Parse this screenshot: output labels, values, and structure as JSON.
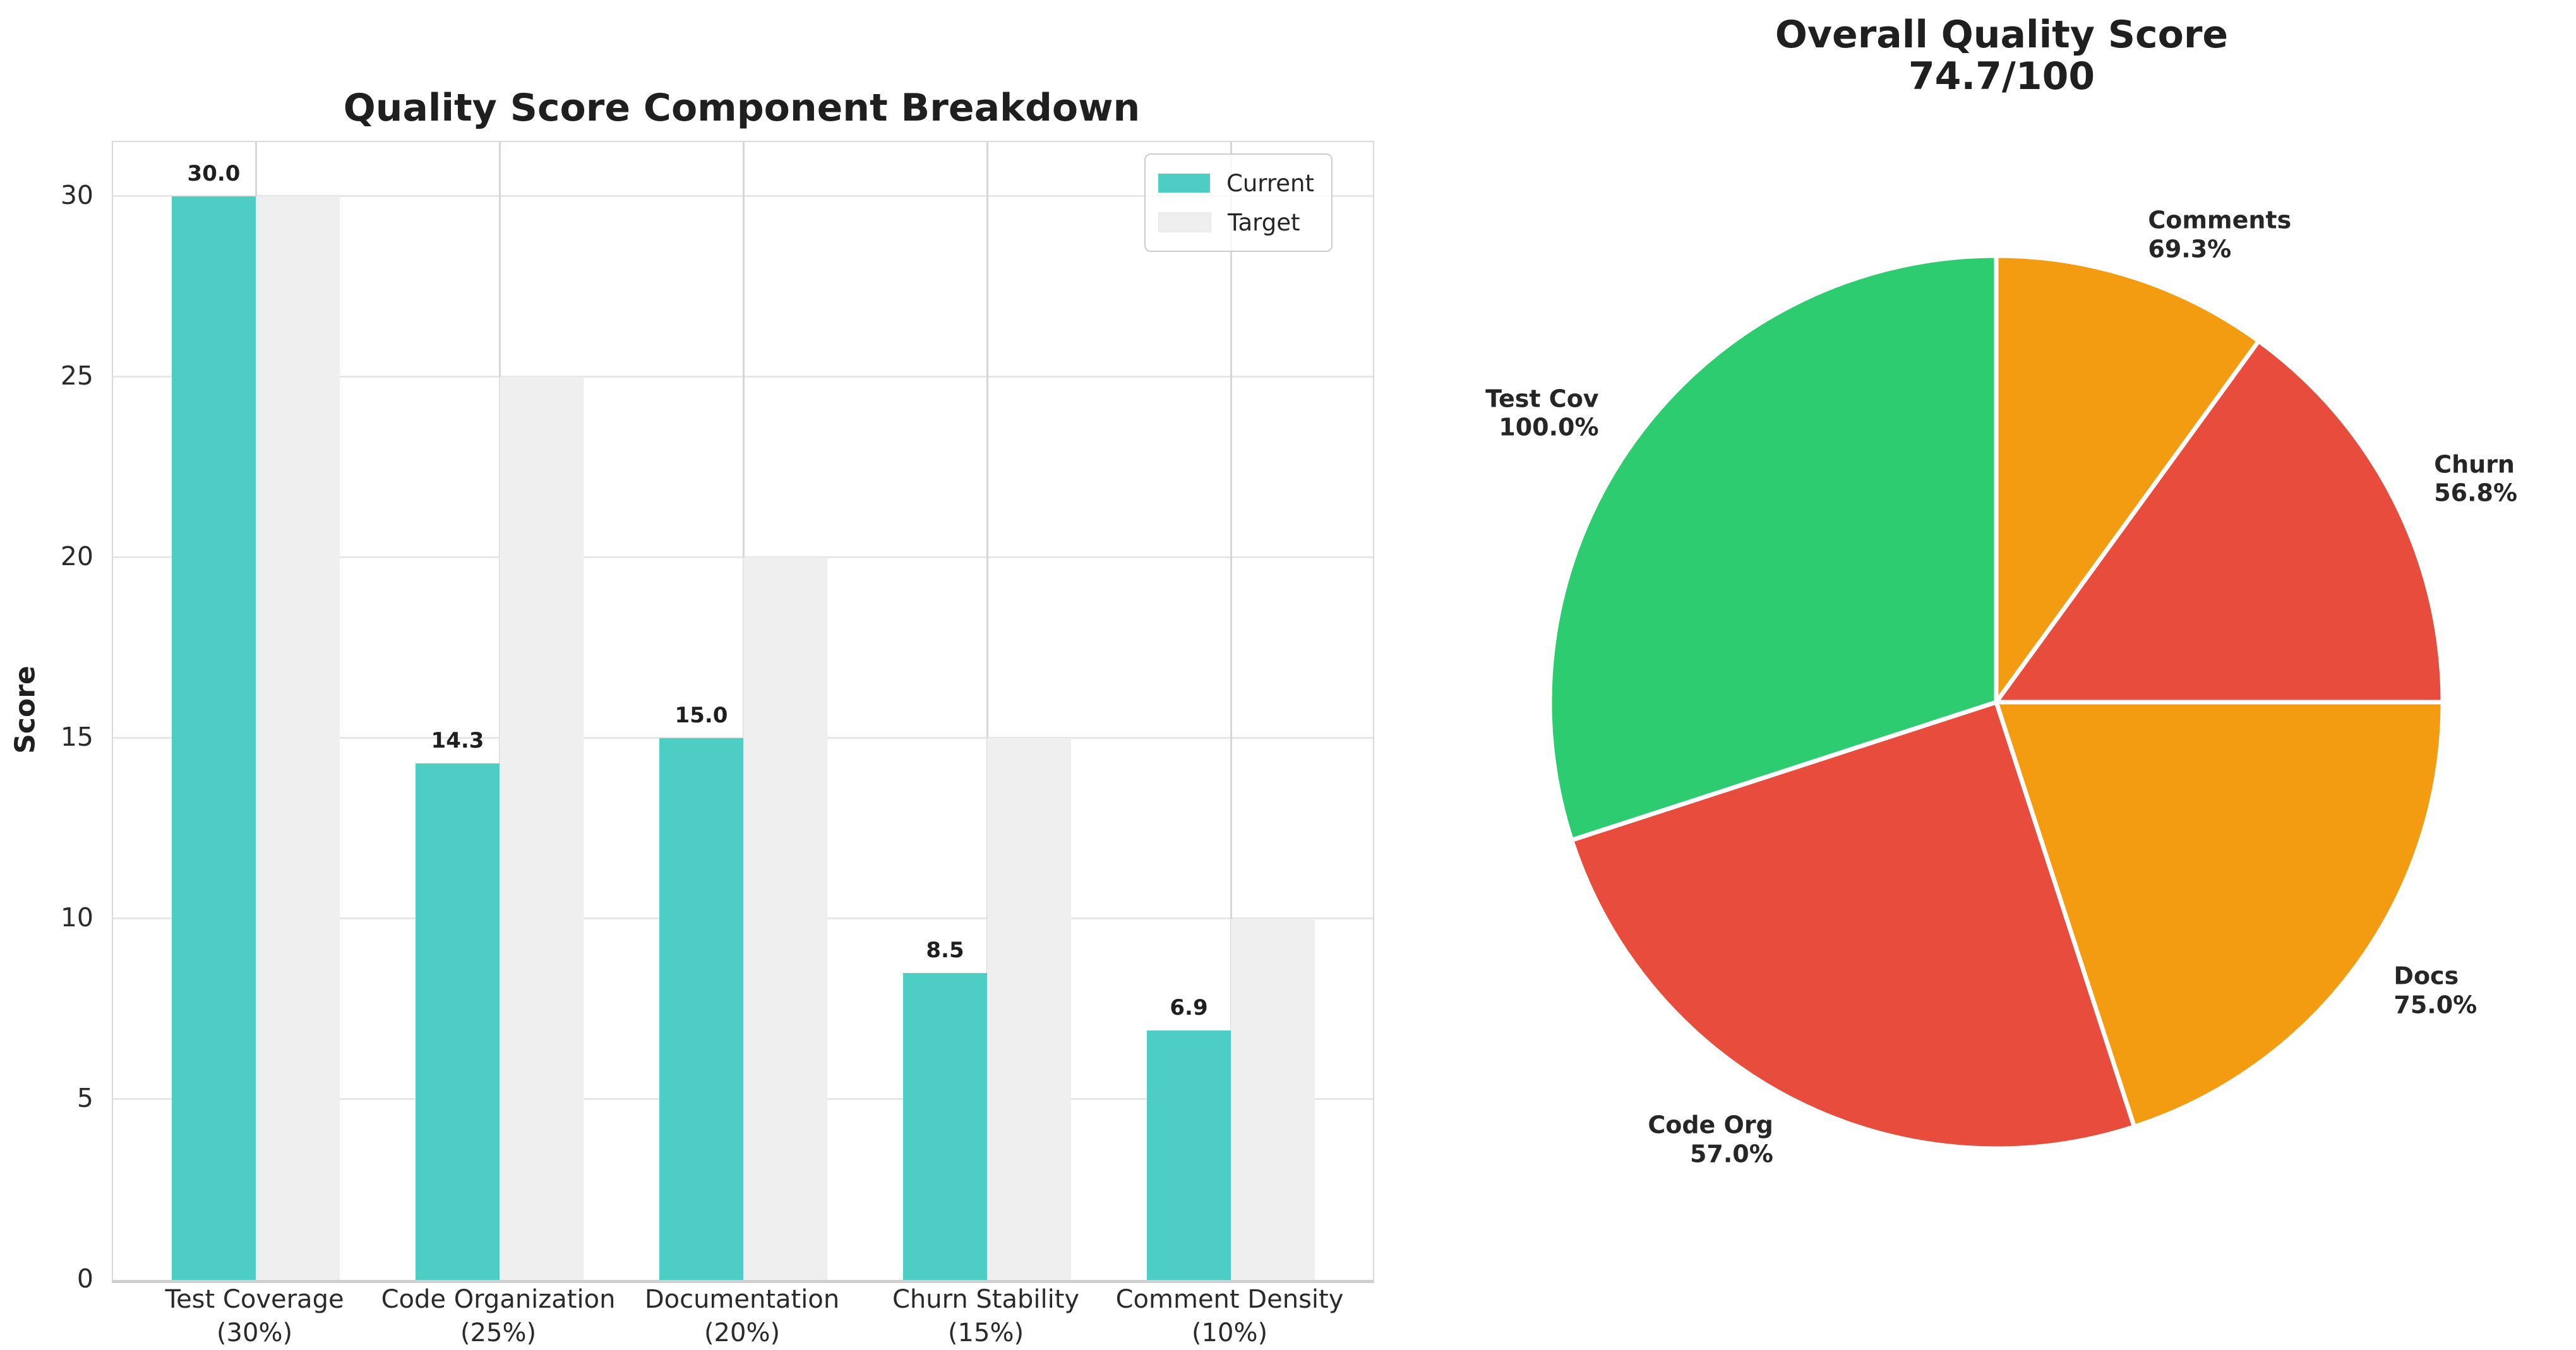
{
  "figure": {
    "background": "#ffffff",
    "text_color": "#262626"
  },
  "chart_data": [
    {
      "type": "bar",
      "title": "Quality Score Component Breakdown",
      "xlabel": "",
      "ylabel": "Score",
      "categories": [
        "Test Coverage\n(30%)",
        "Code Organization\n(25%)",
        "Documentation\n(20%)",
        "Churn Stability\n(15%)",
        "Comment Density\n(10%)"
      ],
      "series": [
        {
          "name": "Current",
          "color": "#4ECDC4",
          "values": [
            30.0,
            14.3,
            15.0,
            8.5,
            6.9
          ],
          "value_labels": [
            "30.0",
            "14.3",
            "15.0",
            "8.5",
            "6.9"
          ]
        },
        {
          "name": "Target",
          "color": "#EFEFEF",
          "values": [
            30,
            25,
            20,
            15,
            10
          ]
        }
      ],
      "yticks": [
        0,
        5,
        10,
        15,
        20,
        25,
        30
      ],
      "ylim": [
        0,
        31.5
      ],
      "grid": true,
      "legend_position": "upper right"
    },
    {
      "type": "pie",
      "title": "Overall Quality Score",
      "subtitle": "74.7/100",
      "start_angle": 90,
      "direction": "clockwise",
      "slices": [
        {
          "label": "Comments",
          "pct_label": "69.3%",
          "weight": 10,
          "color": "#F39C12"
        },
        {
          "label": "Churn",
          "pct_label": "56.8%",
          "weight": 15,
          "color": "#E74C3C"
        },
        {
          "label": "Docs",
          "pct_label": "75.0%",
          "weight": 20,
          "color": "#F39C12"
        },
        {
          "label": "Code Org",
          "pct_label": "57.0%",
          "weight": 25,
          "color": "#E74C3C"
        },
        {
          "label": "Test Cov",
          "pct_label": "100.0%",
          "weight": 30,
          "color": "#2ECC71"
        }
      ]
    }
  ]
}
